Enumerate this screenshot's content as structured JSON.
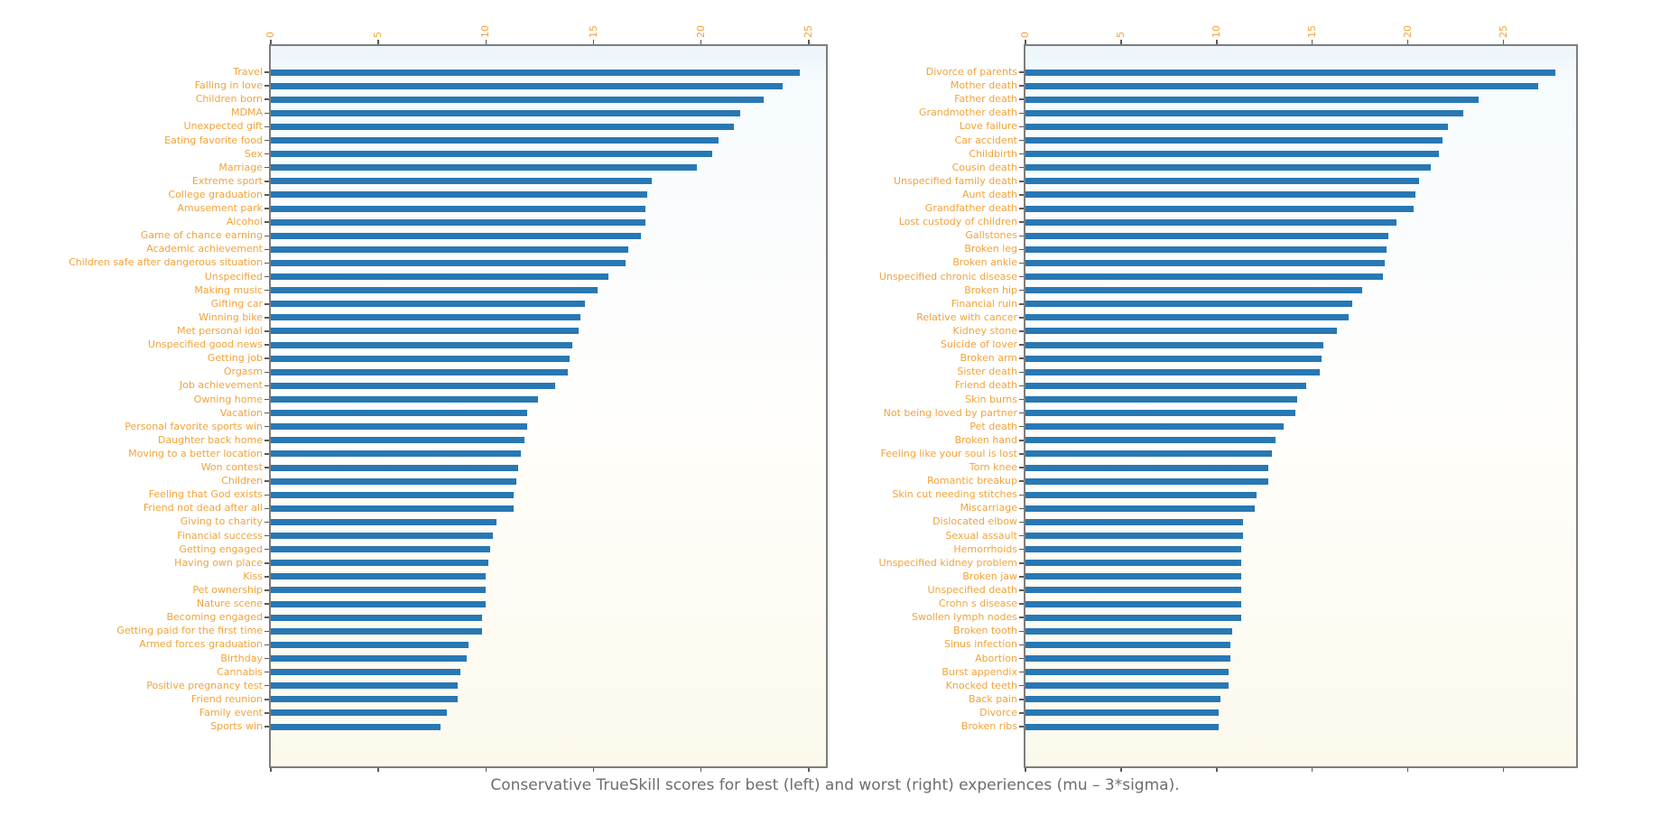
{
  "caption": "Conservative TrueSkill scores for best (left) and worst (right) experiences (mu – 3*sigma).",
  "colors": {
    "bar": "#2878b4",
    "category_label": "#f1a33b",
    "tick_label": "#f1a33b",
    "spine": "#7e7e7e",
    "caption": "#6d6d6d"
  },
  "chart_data": [
    {
      "type": "bar",
      "orientation": "horizontal",
      "title": "",
      "side": "left",
      "subject": "best experiences",
      "xlabel": "",
      "ylabel": "",
      "grid": false,
      "legend": "none",
      "xticks": [
        0,
        5,
        10,
        15,
        20,
        25
      ],
      "xlim": [
        0,
        25.8
      ],
      "categories": [
        "Travel",
        "Falling in love",
        "Children born",
        "MDMA",
        "Unexpected gift",
        "Eating favorite food",
        "Sex",
        "Marriage",
        "Extreme sport",
        "College graduation",
        "Amusement park",
        "Alcohol",
        "Game of chance earning",
        "Academic achievement",
        "Children safe after dangerous situation",
        "Unspecified",
        "Making music",
        "Gifting car",
        "Winning bike",
        "Met personal idol",
        "Unspecified good news",
        "Getting job",
        "Orgasm",
        "Job achievement",
        "Owning home",
        "Vacation",
        "Personal favorite sports win",
        "Daughter back home",
        "Moving to a better location",
        "Won contest",
        "Children",
        "Feeling that God exists",
        "Friend not dead after all",
        "Giving to charity",
        "Financial success",
        "Getting engaged",
        "Having own place",
        "Kiss",
        "Pet ownership",
        "Nature scene",
        "Becoming engaged",
        "Getting paid for the first time",
        "Armed forces graduation",
        "Birthday",
        "Cannabis",
        "Positive pregnancy test",
        "Friend reunion",
        "Family event",
        "Sports win"
      ],
      "values": [
        24.6,
        23.8,
        22.9,
        21.8,
        21.5,
        20.8,
        20.5,
        19.8,
        17.7,
        17.5,
        17.4,
        17.4,
        17.2,
        16.6,
        16.5,
        15.7,
        15.2,
        14.6,
        14.4,
        14.3,
        14.0,
        13.9,
        13.8,
        13.2,
        12.4,
        11.9,
        11.9,
        11.8,
        11.6,
        11.5,
        11.4,
        11.3,
        11.3,
        10.5,
        10.3,
        10.2,
        10.1,
        10.0,
        10.0,
        10.0,
        9.8,
        9.8,
        9.2,
        9.1,
        8.8,
        8.7,
        8.7,
        8.2,
        7.9
      ]
    },
    {
      "type": "bar",
      "orientation": "horizontal",
      "title": "",
      "side": "right",
      "subject": "worst experiences",
      "xlabel": "",
      "ylabel": "",
      "grid": false,
      "legend": "none",
      "xticks": [
        0,
        5,
        10,
        15,
        20,
        25
      ],
      "xlim": [
        0,
        28.8
      ],
      "categories": [
        "Divorce of parents",
        "Mother death",
        "Father death",
        "Grandmother death",
        "Love failure",
        "Car accident",
        "Childbirth",
        "Cousin death",
        "Unspecified family death",
        "Aunt death",
        "Grandfather death",
        "Lost custody of children",
        "Gallstones",
        "Broken leg",
        "Broken ankle",
        "Unspecified chronic disease",
        "Broken hip",
        "Financial ruin",
        "Relative with cancer",
        "Kidney stone",
        "Suicide of lover",
        "Broken arm",
        "Sister death",
        "Friend death",
        "Skin burns",
        "Not being loved by partner",
        "Pet death",
        "Broken hand",
        "Feeling like your soul is lost",
        "Torn knee",
        "Romantic breakup",
        "Skin cut needing stitches",
        "Miscarriage",
        "Dislocated elbow",
        "Sexual assault",
        "Hemorrhoids",
        "Unspecified kidney problem",
        "Broken jaw",
        "Unspecified death",
        "Crohn s disease",
        "Swollen lymph nodes",
        "Broken tooth",
        "Sinus infection",
        "Abortion",
        "Burst appendix",
        "Knocked teeth",
        "Back pain",
        "Divorce",
        "Broken ribs"
      ],
      "values": [
        27.7,
        26.8,
        23.7,
        22.9,
        22.1,
        21.8,
        21.6,
        21.2,
        20.6,
        20.4,
        20.3,
        19.4,
        19.0,
        18.9,
        18.8,
        18.7,
        17.6,
        17.1,
        16.9,
        16.3,
        15.6,
        15.5,
        15.4,
        14.7,
        14.2,
        14.1,
        13.5,
        13.1,
        12.9,
        12.7,
        12.7,
        12.1,
        12.0,
        11.4,
        11.4,
        11.3,
        11.3,
        11.3,
        11.3,
        11.3,
        11.3,
        10.8,
        10.7,
        10.7,
        10.6,
        10.6,
        10.2,
        10.1,
        10.1
      ]
    }
  ]
}
